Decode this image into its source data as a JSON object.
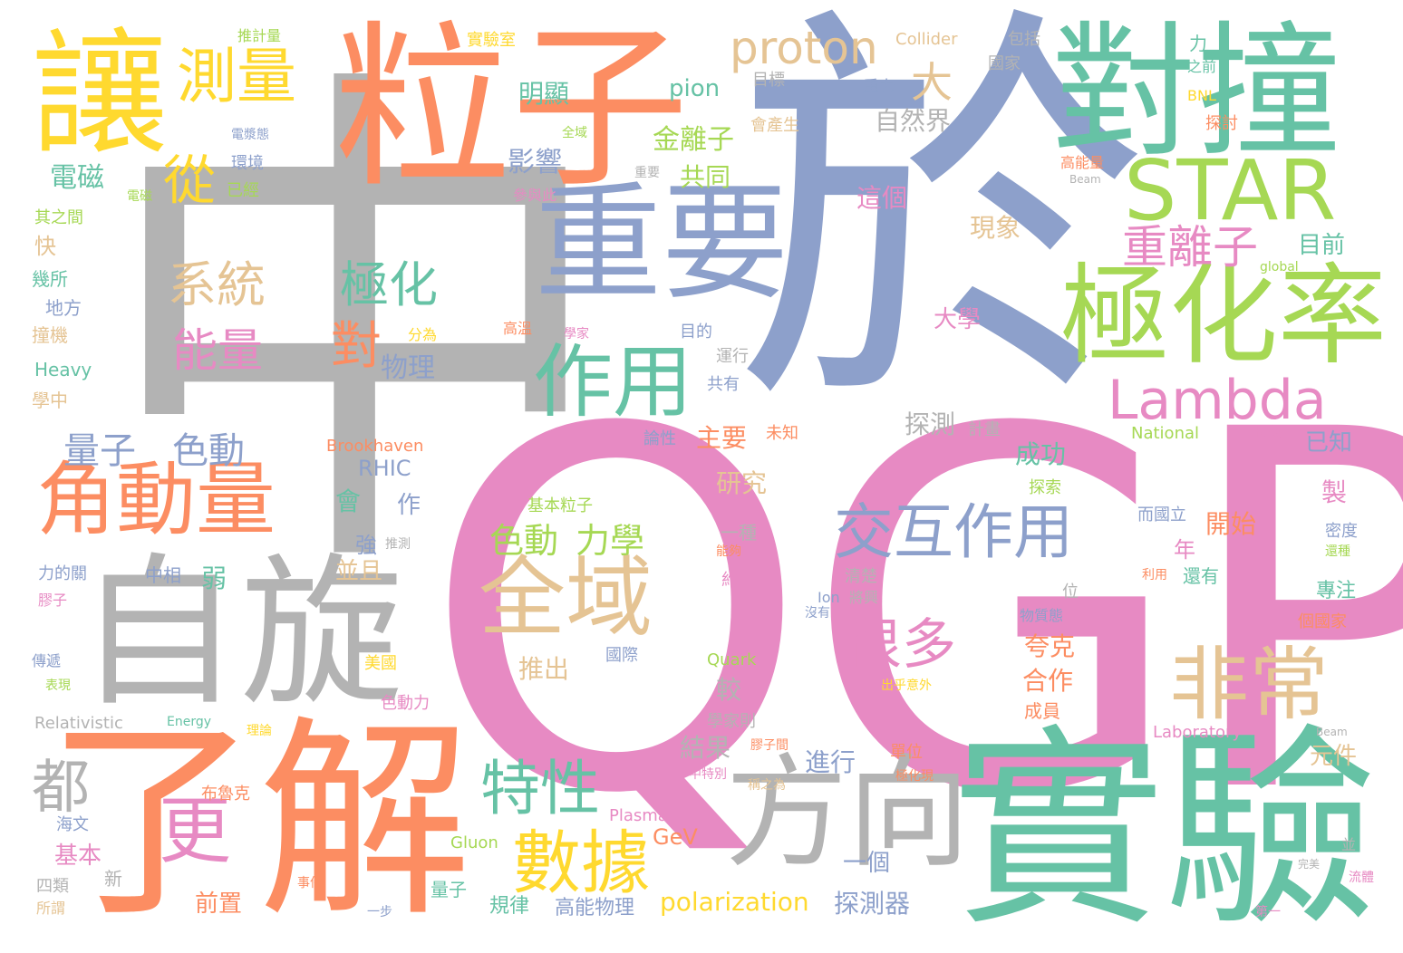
{
  "palette": {
    "gray": "#b3b3b3",
    "orange": "#fc8d62",
    "blue": "#8da0cb",
    "pink": "#e78ac3",
    "green": "#66c2a5",
    "lime": "#a6d854",
    "yellow": "#ffd92f",
    "tan": "#e5c494"
  },
  "words": [
    {
      "text": "中",
      "color": "gray"
    },
    {
      "text": "於",
      "color": "blue"
    },
    {
      "text": "QGP",
      "color": "pink"
    },
    {
      "text": "粒子",
      "color": "orange"
    },
    {
      "text": "了解",
      "color": "orange"
    },
    {
      "text": "實驗",
      "color": "green"
    },
    {
      "text": "自旋",
      "color": "gray"
    },
    {
      "text": "對撞",
      "color": "green"
    },
    {
      "text": "重要",
      "color": "blue"
    },
    {
      "text": "讓",
      "color": "yellow"
    },
    {
      "text": "極化率",
      "color": "lime"
    },
    {
      "text": "方向",
      "color": "gray"
    },
    {
      "text": "STAR",
      "color": "lime"
    },
    {
      "text": "Lambda",
      "color": "pink"
    },
    {
      "text": "角動量",
      "color": "orange"
    },
    {
      "text": "全域",
      "color": "tan"
    },
    {
      "text": "交互作用",
      "color": "blue"
    },
    {
      "text": "作用",
      "color": "green"
    },
    {
      "text": "非常",
      "color": "tan"
    },
    {
      "text": "更",
      "color": "pink"
    },
    {
      "text": "數據",
      "color": "yellow"
    },
    {
      "text": "測量",
      "color": "yellow"
    },
    {
      "text": "特性",
      "color": "green"
    },
    {
      "text": "重離子",
      "color": "pink"
    },
    {
      "text": "很多",
      "color": "pink"
    },
    {
      "text": "proton",
      "color": "tan"
    },
    {
      "text": "系統",
      "color": "tan"
    },
    {
      "text": "極化",
      "color": "green"
    },
    {
      "text": "能量",
      "color": "pink"
    },
    {
      "text": "對",
      "color": "orange"
    },
    {
      "text": "從",
      "color": "yellow"
    },
    {
      "text": "量子",
      "color": "blue"
    },
    {
      "text": "色動",
      "color": "blue"
    },
    {
      "text": "色動",
      "color": "lime"
    },
    {
      "text": "力學",
      "color": "lime"
    },
    {
      "text": "都",
      "color": "gray"
    },
    {
      "text": "大",
      "color": "tan"
    },
    {
      "text": "物理",
      "color": "blue"
    },
    {
      "text": "自然界",
      "color": "gray"
    },
    {
      "text": "金離子",
      "color": "lime"
    },
    {
      "text": "影響",
      "color": "blue"
    },
    {
      "text": "明顯",
      "color": "green"
    },
    {
      "text": "pion",
      "color": "green"
    },
    {
      "text": "共同",
      "color": "lime"
    },
    {
      "text": "電磁",
      "color": "green"
    },
    {
      "text": "這個",
      "color": "pink"
    },
    {
      "text": "現象",
      "color": "tan"
    },
    {
      "text": "目前",
      "color": "green"
    },
    {
      "text": "大學",
      "color": "pink"
    },
    {
      "text": "探測",
      "color": "gray"
    },
    {
      "text": "成功",
      "color": "green"
    },
    {
      "text": "研究",
      "color": "tan"
    },
    {
      "text": "主要",
      "color": "orange"
    },
    {
      "text": "RHIC",
      "color": "blue"
    },
    {
      "text": "Brookhaven",
      "color": "orange"
    },
    {
      "text": "夸克",
      "color": "orange"
    },
    {
      "text": "合作",
      "color": "orange"
    },
    {
      "text": "推出",
      "color": "tan"
    },
    {
      "text": "開始",
      "color": "orange"
    },
    {
      "text": "年",
      "color": "pink"
    },
    {
      "text": "製",
      "color": "pink"
    },
    {
      "text": "已知",
      "color": "blue"
    },
    {
      "text": "結果",
      "color": "gray"
    },
    {
      "text": "進行",
      "color": "blue"
    },
    {
      "text": "一個",
      "color": "blue"
    },
    {
      "text": "polarization",
      "color": "yellow"
    },
    {
      "text": "探測器",
      "color": "blue"
    },
    {
      "text": "高能物理",
      "color": "blue"
    },
    {
      "text": "前置",
      "color": "orange"
    },
    {
      "text": "GeV",
      "color": "orange"
    },
    {
      "text": "元件",
      "color": "tan"
    },
    {
      "text": "弱",
      "color": "green"
    },
    {
      "text": "並且",
      "color": "tan"
    },
    {
      "text": "強",
      "color": "blue"
    },
    {
      "text": "會",
      "color": "green"
    },
    {
      "text": "作",
      "color": "blue"
    },
    {
      "text": "較",
      "color": "gray"
    },
    {
      "text": "基本",
      "color": "pink"
    },
    {
      "text": "快",
      "color": "tan"
    },
    {
      "text": "幾所",
      "color": "green"
    },
    {
      "text": "地方",
      "color": "blue"
    },
    {
      "text": "撞機",
      "color": "tan"
    },
    {
      "text": "Heavy",
      "color": "green"
    },
    {
      "text": "學中",
      "color": "tan"
    },
    {
      "text": "其之間",
      "color": "lime"
    },
    {
      "text": "新",
      "color": "gray"
    },
    {
      "text": "四類",
      "color": "gray"
    },
    {
      "text": "所謂",
      "color": "tan"
    },
    {
      "text": "海文",
      "color": "blue"
    },
    {
      "text": "Gluon",
      "color": "lime"
    },
    {
      "text": "量子",
      "color": "green"
    },
    {
      "text": "規律",
      "color": "green"
    },
    {
      "text": "Plasma",
      "color": "pink"
    },
    {
      "text": "布魯克",
      "color": "orange"
    },
    {
      "text": "色動力",
      "color": "pink"
    },
    {
      "text": "美國",
      "color": "yellow"
    },
    {
      "text": "Relativistic",
      "color": "gray"
    },
    {
      "text": "Energy",
      "color": "green"
    },
    {
      "text": "Quark",
      "color": "lime"
    },
    {
      "text": "國際",
      "color": "blue"
    },
    {
      "text": "學家則",
      "color": "gray"
    },
    {
      "text": "成員",
      "color": "orange"
    },
    {
      "text": "單位",
      "color": "orange"
    },
    {
      "text": "Laboratory",
      "color": "pink"
    },
    {
      "text": "National",
      "color": "lime"
    },
    {
      "text": "Collider",
      "color": "tan"
    },
    {
      "text": "包括",
      "color": "gray"
    },
    {
      "text": "國家",
      "color": "gray"
    },
    {
      "text": "目標",
      "color": "gray"
    },
    {
      "text": "重力",
      "color": "blue"
    },
    {
      "text": "會產生",
      "color": "tan"
    },
    {
      "text": "實驗室",
      "color": "yellow"
    },
    {
      "text": "力",
      "color": "green"
    },
    {
      "text": "之前",
      "color": "green"
    },
    {
      "text": "BNL",
      "color": "yellow"
    },
    {
      "text": "探討",
      "color": "orange"
    },
    {
      "text": "高能量",
      "color": "orange"
    },
    {
      "text": "Beam",
      "color": "gray"
    },
    {
      "text": "環境",
      "color": "blue"
    },
    {
      "text": "已經",
      "color": "lime"
    },
    {
      "text": "電漿態",
      "color": "blue"
    },
    {
      "text": "參與此",
      "color": "pink"
    },
    {
      "text": "推計量",
      "color": "lime"
    },
    {
      "text": "分為",
      "color": "yellow"
    },
    {
      "text": "目的",
      "color": "blue"
    },
    {
      "text": "運行",
      "color": "gray"
    },
    {
      "text": "共有",
      "color": "blue"
    },
    {
      "text": "高溫",
      "color": "orange"
    },
    {
      "text": "學家",
      "color": "pink"
    },
    {
      "text": "論性",
      "color": "blue"
    },
    {
      "text": "未知",
      "color": "orange"
    },
    {
      "text": "計畫",
      "color": "gray"
    },
    {
      "text": "探索",
      "color": "lime"
    },
    {
      "text": "基本粒子",
      "color": "lime"
    },
    {
      "text": "推測",
      "color": "gray"
    },
    {
      "text": "清楚",
      "color": "gray"
    },
    {
      "text": "Ion",
      "color": "blue"
    },
    {
      "text": "將興",
      "color": "gray"
    },
    {
      "text": "而國立",
      "color": "blue"
    },
    {
      "text": "密度",
      "color": "blue"
    },
    {
      "text": "還種",
      "color": "lime"
    },
    {
      "text": "利用",
      "color": "orange"
    },
    {
      "text": "還有",
      "color": "green"
    },
    {
      "text": "專注",
      "color": "green"
    },
    {
      "text": "位",
      "color": "gray"
    },
    {
      "text": "物質態",
      "color": "blue"
    },
    {
      "text": "個國家",
      "color": "orange"
    },
    {
      "text": "沒有",
      "color": "blue"
    },
    {
      "text": "出乎意外",
      "color": "yellow"
    },
    {
      "text": "極化現",
      "color": "orange"
    },
    {
      "text": "中特別",
      "color": "pink"
    },
    {
      "text": "膠子間",
      "color": "orange"
    },
    {
      "text": "稱之為",
      "color": "tan"
    },
    {
      "text": "理論",
      "color": "yellow"
    },
    {
      "text": "力的關",
      "color": "blue"
    },
    {
      "text": "中相",
      "color": "blue"
    },
    {
      "text": "膠子",
      "color": "pink"
    },
    {
      "text": "傳遞",
      "color": "blue"
    },
    {
      "text": "表現",
      "color": "lime"
    },
    {
      "text": "一種",
      "color": "gray"
    },
    {
      "text": "能夠",
      "color": "orange"
    },
    {
      "text": "約",
      "color": "pink"
    },
    {
      "text": "全域",
      "color": "lime"
    },
    {
      "text": "重要",
      "color": "gray"
    },
    {
      "text": "電磁",
      "color": "lime"
    },
    {
      "text": "global",
      "color": "lime"
    },
    {
      "text": "最終",
      "color": "pink"
    },
    {
      "text": "第一",
      "color": "pink"
    },
    {
      "text": "流體",
      "color": "pink"
    },
    {
      "text": "一步",
      "color": "blue"
    },
    {
      "text": "事件",
      "color": "orange"
    },
    {
      "text": "完美",
      "color": "gray"
    },
    {
      "text": "並",
      "color": "gray"
    },
    {
      "text": "Beam",
      "color": "gray"
    }
  ]
}
